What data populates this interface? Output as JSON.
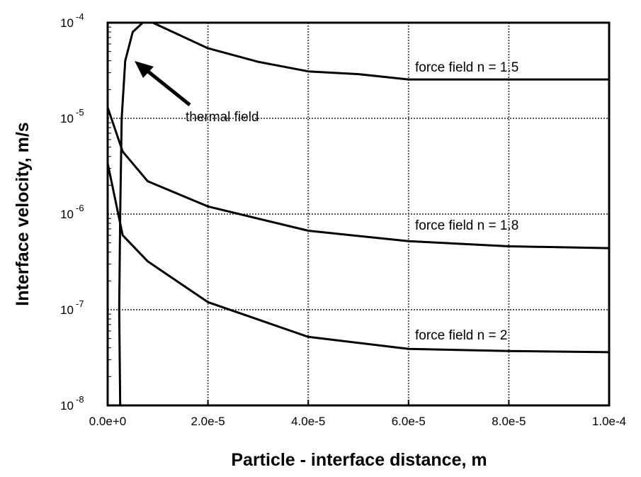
{
  "chart_data": {
    "type": "line",
    "xlabel": "Particle - interface distance, m",
    "ylabel": "Interface velocity, m/s",
    "xlim": [
      0,
      0.0001
    ],
    "ylim": [
      1e-08,
      0.0001
    ],
    "log_y": true,
    "grid": true,
    "color": "#000000",
    "xticks": [
      {
        "value": 0,
        "label": "0.0e+0"
      },
      {
        "value": 2e-05,
        "label": "2.0e-5"
      },
      {
        "value": 4e-05,
        "label": "4.0e-5"
      },
      {
        "value": 6e-05,
        "label": "6.0e-5"
      },
      {
        "value": 8e-05,
        "label": "8.0e-5"
      },
      {
        "value": 0.0001,
        "label": "1.0e-4"
      }
    ],
    "yticks": [
      {
        "value": 1e-08,
        "label": "10",
        "exponent": "-8"
      },
      {
        "value": 1e-07,
        "label": "10",
        "exponent": "-7"
      },
      {
        "value": 1e-06,
        "label": "10",
        "exponent": "-6"
      },
      {
        "value": 1e-05,
        "label": "10",
        "exponent": "-5"
      },
      {
        "value": 0.0001,
        "label": "10",
        "exponent": "-4"
      }
    ],
    "series": [
      {
        "name": "force field n = 1.5",
        "x": [
          9e-06,
          1.3e-05,
          2e-05,
          3e-05,
          4e-05,
          5e-05,
          6e-05,
          8e-05,
          0.0001
        ],
        "values": [
          0.0001,
          8e-05,
          5.4e-05,
          3.9e-05,
          3.1e-05,
          2.9e-05,
          2.55e-05,
          2.55e-05,
          2.55e-05
        ]
      },
      {
        "name": "force field n = 1.8",
        "x": [
          0,
          3e-06,
          8e-06,
          2e-05,
          4e-05,
          6e-05,
          8e-05,
          0.0001
        ],
        "values": [
          1.3e-05,
          4.5e-06,
          2.2e-06,
          1.2e-06,
          6.7e-07,
          5.2e-07,
          4.6e-07,
          4.4e-07
        ]
      },
      {
        "name": "force field n = 2",
        "x": [
          0,
          3e-06,
          8e-06,
          2e-05,
          4e-05,
          6e-05,
          8e-05,
          0.0001
        ],
        "values": [
          3.4e-06,
          6e-07,
          3.2e-07,
          1.2e-07,
          5.2e-08,
          3.9e-08,
          3.7e-08,
          3.6e-08
        ]
      },
      {
        "name": "thermal field",
        "x": [
          2.5e-06,
          2.3e-06,
          2.5e-06,
          2.8e-06,
          3.5e-06,
          5e-06,
          7e-06,
          1e-05
        ],
        "values": [
          1e-08,
          1e-07,
          1e-06,
          1e-05,
          4e-05,
          8e-05,
          0.0001,
          0.0001
        ]
      }
    ]
  }
}
